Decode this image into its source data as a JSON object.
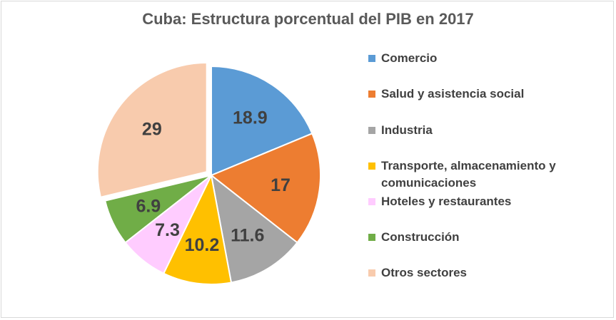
{
  "chart_data": {
    "type": "pie",
    "title": "Cuba: Estructura porcentual del PIB en 2017",
    "categories": [
      "Comercio",
      "Salud y asistencia social",
      "Industria",
      "Transporte, almacenamiento y comunicaciones",
      "Hoteles y restaurantes",
      "Construcción",
      "Otros sectores"
    ],
    "values": [
      18.9,
      17,
      11.6,
      10.2,
      7.3,
      6.9,
      29
    ],
    "labels": [
      "18.9",
      "17",
      "11.6",
      "10.2",
      "7.3",
      "6.9",
      "29"
    ],
    "colors": [
      "#5b9bd5",
      "#ed7d31",
      "#a5a5a5",
      "#ffc000",
      "#ffccff",
      "#70ad47",
      "#f8cbad"
    ],
    "exploded": "Otros sectores",
    "legend_position": "right"
  }
}
